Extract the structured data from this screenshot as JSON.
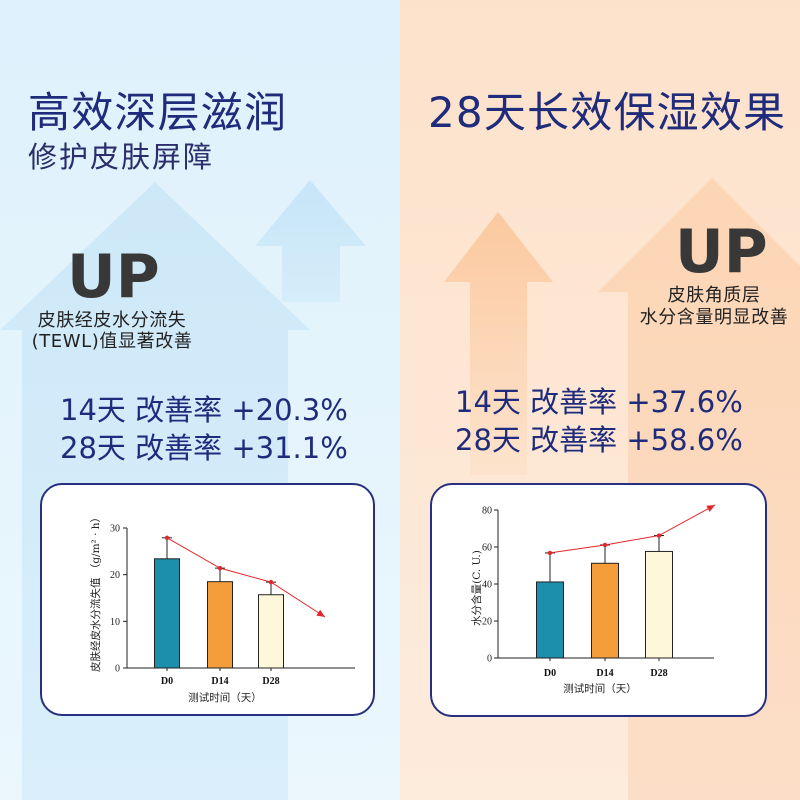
{
  "left_panel": {
    "title": "高效深层滋润",
    "subtitle": "修护皮肤屏障",
    "up_label": "UP",
    "description": [
      "皮肤经皮水分流失",
      "(TEWL)值显著改善"
    ],
    "results": [
      "14天 改善率 +20.3%",
      "28天 改善率 +31.1%"
    ]
  },
  "right_panel": {
    "title": "28天长效保湿效果",
    "up_label": "UP",
    "description": [
      "皮肤角质层",
      "水分含量明显改善"
    ],
    "results": [
      "14天 改善率 +37.6%",
      "28天 改善率 +58.6%"
    ]
  },
  "colors": {
    "heading": "#1f2b7b",
    "card_border": "#27307f",
    "left_background": "#e0f2fc",
    "right_background": "#fde4ce"
  },
  "chart_data": [
    {
      "type": "bar",
      "categories": [
        "D0",
        "D14",
        "D28"
      ],
      "values": [
        23.4,
        18.5,
        15.7
      ],
      "errors": [
        4.5,
        2.9,
        2.7
      ],
      "trend": [
        27.9,
        21.4,
        18.4
      ],
      "xlabel": "测试时间（天）",
      "ylabel": "皮肤经皮水分流失值 （g/m² · h）",
      "ylim": [
        0,
        30
      ],
      "yticks": [
        0,
        10,
        20,
        30
      ],
      "bar_colors": [
        "#1b8fab",
        "#f59d3b",
        "#fff7da"
      ],
      "trend_color": "#e3262b",
      "grid": false
    },
    {
      "type": "bar",
      "categories": [
        "D0",
        "D14",
        "D28"
      ],
      "values": [
        41.1,
        51.2,
        57.6
      ],
      "errors": [
        15.7,
        9.9,
        8.6
      ],
      "trend": [
        56.8,
        61.1,
        66.2
      ],
      "xlabel": "测试时间（天）",
      "ylabel": "水分含量(C. U.)",
      "ylim": [
        0,
        80
      ],
      "yticks": [
        0,
        20,
        40,
        60,
        80
      ],
      "bar_colors": [
        "#1b8fab",
        "#f59d3b",
        "#fff7da"
      ],
      "trend_color": "#e3262b",
      "grid": false
    }
  ]
}
